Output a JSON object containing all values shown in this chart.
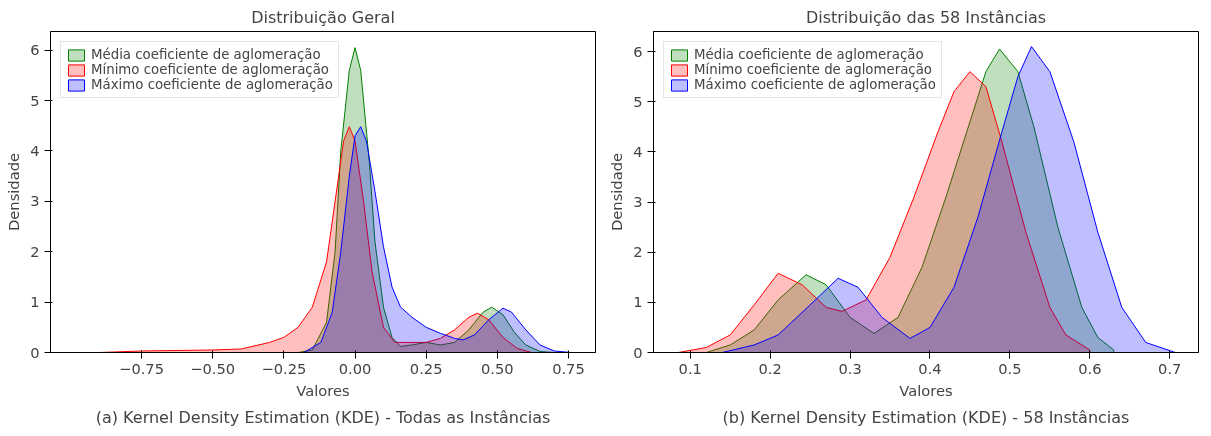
{
  "chart_data": [
    {
      "type": "area",
      "title": "Distribuição Geral",
      "xlabel": "Valores",
      "ylabel": "Densidade",
      "annotations": [
        "(a) Kernel Density Estimation (KDE) - Todas as Instâncias"
      ],
      "legend": "top left",
      "grid": false,
      "xlim": [
        -1.07,
        0.845
      ],
      "ylim": [
        0,
        6.37
      ],
      "xticks": [
        {
          "value": -0.75,
          "label": "−0.75"
        },
        {
          "value": -0.5,
          "label": "−0.50"
        },
        {
          "value": -0.25,
          "label": "−0.25"
        },
        {
          "value": 0,
          "label": "0.00"
        },
        {
          "value": 0.25,
          "label": "0.25"
        },
        {
          "value": 0.5,
          "label": "0.50"
        },
        {
          "value": 0.75,
          "label": "0.75"
        }
      ],
      "yticks": [
        0,
        1,
        2,
        3,
        4,
        5,
        6
      ],
      "series": [
        {
          "name": "Média coeficiente de aglomeração",
          "color": "#008000",
          "x": [
            -0.2,
            -0.15,
            -0.1,
            -0.07,
            -0.05,
            -0.02,
            0,
            0.02,
            0.05,
            0.07,
            0.1,
            0.13,
            0.16,
            0.2,
            0.25,
            0.3,
            0.35,
            0.4,
            0.45,
            0.48,
            0.52,
            0.56,
            0.6,
            0.65,
            0.7
          ],
          "values": [
            0,
            0.05,
            0.6,
            2,
            4,
            5.6,
            6.05,
            5.6,
            3.8,
            2.2,
            0.9,
            0.3,
            0.12,
            0.15,
            0.2,
            0.15,
            0.2,
            0.45,
            0.8,
            0.9,
            0.75,
            0.4,
            0.15,
            0.02,
            0
          ]
        },
        {
          "name": "Mínimo coeficiente de aglomeração",
          "color": "#ff0000",
          "x": [
            -0.9,
            -0.75,
            -0.5,
            -0.4,
            -0.3,
            -0.25,
            -0.2,
            -0.15,
            -0.1,
            -0.07,
            -0.04,
            -0.02,
            0,
            0.03,
            0.06,
            0.1,
            0.14,
            0.2,
            0.25,
            0.3,
            0.35,
            0.4,
            0.43,
            0.47,
            0.52,
            0.57,
            0.62
          ],
          "values": [
            0,
            0.03,
            0.05,
            0.07,
            0.2,
            0.3,
            0.5,
            0.9,
            1.8,
            3,
            4.2,
            4.48,
            4.2,
            3,
            1.6,
            0.5,
            0.2,
            0.2,
            0.2,
            0.28,
            0.45,
            0.7,
            0.78,
            0.65,
            0.3,
            0.08,
            0
          ]
        },
        {
          "name": "Máximo coeficiente de aglomeração",
          "color": "#0000ff",
          "x": [
            -0.18,
            -0.12,
            -0.08,
            -0.05,
            -0.02,
            0,
            0.02,
            0.04,
            0.07,
            0.1,
            0.13,
            0.16,
            0.2,
            0.25,
            0.3,
            0.35,
            0.38,
            0.42,
            0.47,
            0.52,
            0.55,
            0.6,
            0.65,
            0.7,
            0.76
          ],
          "values": [
            0,
            0.2,
            0.8,
            2,
            3.5,
            4.3,
            4.48,
            4.2,
            3.2,
            2.1,
            1.3,
            0.9,
            0.7,
            0.5,
            0.38,
            0.28,
            0.25,
            0.35,
            0.65,
            0.88,
            0.8,
            0.45,
            0.15,
            0.03,
            0
          ]
        }
      ]
    },
    {
      "type": "area",
      "title": "Distribuição das 58 Instâncias",
      "xlabel": "Valores",
      "ylabel": "Densidade",
      "annotations": [
        "(b) Kernel Density Estimation (KDE) - 58 Instâncias"
      ],
      "legend": "top left",
      "grid": false,
      "xlim": [
        0.054,
        0.736
      ],
      "ylim": [
        0,
        6.4
      ],
      "xticks": [
        0.1,
        0.2,
        0.3,
        0.4,
        0.5,
        0.6,
        0.7
      ],
      "yticks": [
        0,
        1,
        2,
        3,
        4,
        5,
        6
      ],
      "series": [
        {
          "name": "Média coeficiente de aglomeração",
          "color": "#008000",
          "x": [
            0.12,
            0.15,
            0.18,
            0.21,
            0.245,
            0.27,
            0.3,
            0.33,
            0.36,
            0.39,
            0.42,
            0.45,
            0.47,
            0.487,
            0.51,
            0.53,
            0.56,
            0.59,
            0.61,
            0.63
          ],
          "values": [
            0,
            0.15,
            0.45,
            1.05,
            1.55,
            1.35,
            0.7,
            0.38,
            0.7,
            1.7,
            3.1,
            4.6,
            5.6,
            6.05,
            5.6,
            4.5,
            2.5,
            0.9,
            0.3,
            0.05
          ]
        },
        {
          "name": "Mínimo coeficiente de aglomeração",
          "color": "#ff0000",
          "x": [
            0.085,
            0.12,
            0.15,
            0.18,
            0.21,
            0.24,
            0.27,
            0.29,
            0.32,
            0.35,
            0.38,
            0.41,
            0.43,
            0.45,
            0.47,
            0.49,
            0.52,
            0.55,
            0.57,
            0.6
          ],
          "values": [
            0,
            0.1,
            0.35,
            0.95,
            1.58,
            1.35,
            0.9,
            0.82,
            1.05,
            1.9,
            3.1,
            4.4,
            5.2,
            5.6,
            5.3,
            4.2,
            2.4,
            0.9,
            0.35,
            0.05
          ]
        },
        {
          "name": "Máximo coeficiente de aglomeração",
          "color": "#0000ff",
          "x": [
            0.14,
            0.18,
            0.21,
            0.25,
            0.285,
            0.31,
            0.34,
            0.375,
            0.4,
            0.43,
            0.46,
            0.49,
            0.51,
            0.527,
            0.55,
            0.58,
            0.61,
            0.64,
            0.67,
            0.707
          ],
          "values": [
            0,
            0.15,
            0.35,
            0.95,
            1.48,
            1.3,
            0.7,
            0.28,
            0.5,
            1.3,
            2.7,
            4.4,
            5.5,
            6.1,
            5.6,
            4.2,
            2.4,
            0.9,
            0.2,
            0
          ]
        }
      ]
    }
  ]
}
